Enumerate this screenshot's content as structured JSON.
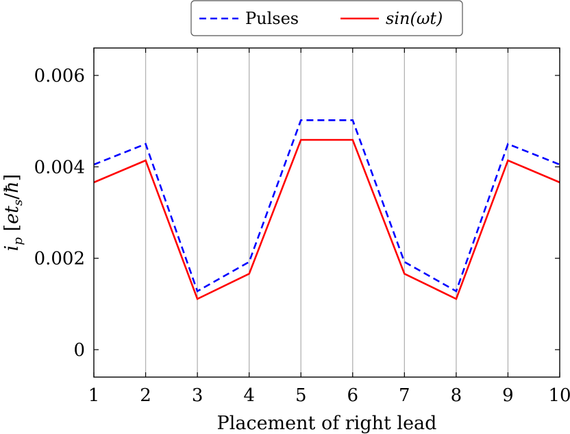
{
  "chart_data": {
    "type": "line",
    "xlabel": "Placement of right lead",
    "ylabel": "i_p [et_s/ħ]",
    "ylabel_parts": {
      "main": "i",
      "main_sub": "p",
      "open": " [",
      "num": "et",
      "num_sub": "s",
      "slash": "/",
      "hbar": "ħ",
      "close": "]"
    },
    "xlim": [
      1,
      10
    ],
    "ylim": [
      -0.0006,
      0.0066
    ],
    "x": [
      1,
      2,
      3,
      4,
      5,
      6,
      7,
      8,
      9,
      10
    ],
    "x_ticks": [
      1,
      2,
      3,
      4,
      5,
      6,
      7,
      8,
      9,
      10
    ],
    "x_tick_labels": [
      "1",
      "2",
      "3",
      "4",
      "5",
      "6",
      "7",
      "8",
      "9",
      "10"
    ],
    "y_ticks": [
      0,
      0.002,
      0.004,
      0.006
    ],
    "y_tick_labels": [
      "0",
      "0.002",
      "0.004",
      "0.006"
    ],
    "grid": "vertical",
    "legend_placement": "top-center",
    "series": [
      {
        "name": "Pulses",
        "color": "#0000ff",
        "style": "dashed",
        "values": [
          0.00405,
          0.0045,
          0.00128,
          0.00192,
          0.00502,
          0.00502,
          0.00192,
          0.00128,
          0.0045,
          0.00405
        ]
      },
      {
        "name": "sin(ωt)",
        "color": "#ff0000",
        "style": "solid",
        "italic": true,
        "values": [
          0.00366,
          0.00414,
          0.00111,
          0.00166,
          0.00459,
          0.00459,
          0.00166,
          0.00111,
          0.00414,
          0.00366
        ]
      }
    ]
  }
}
